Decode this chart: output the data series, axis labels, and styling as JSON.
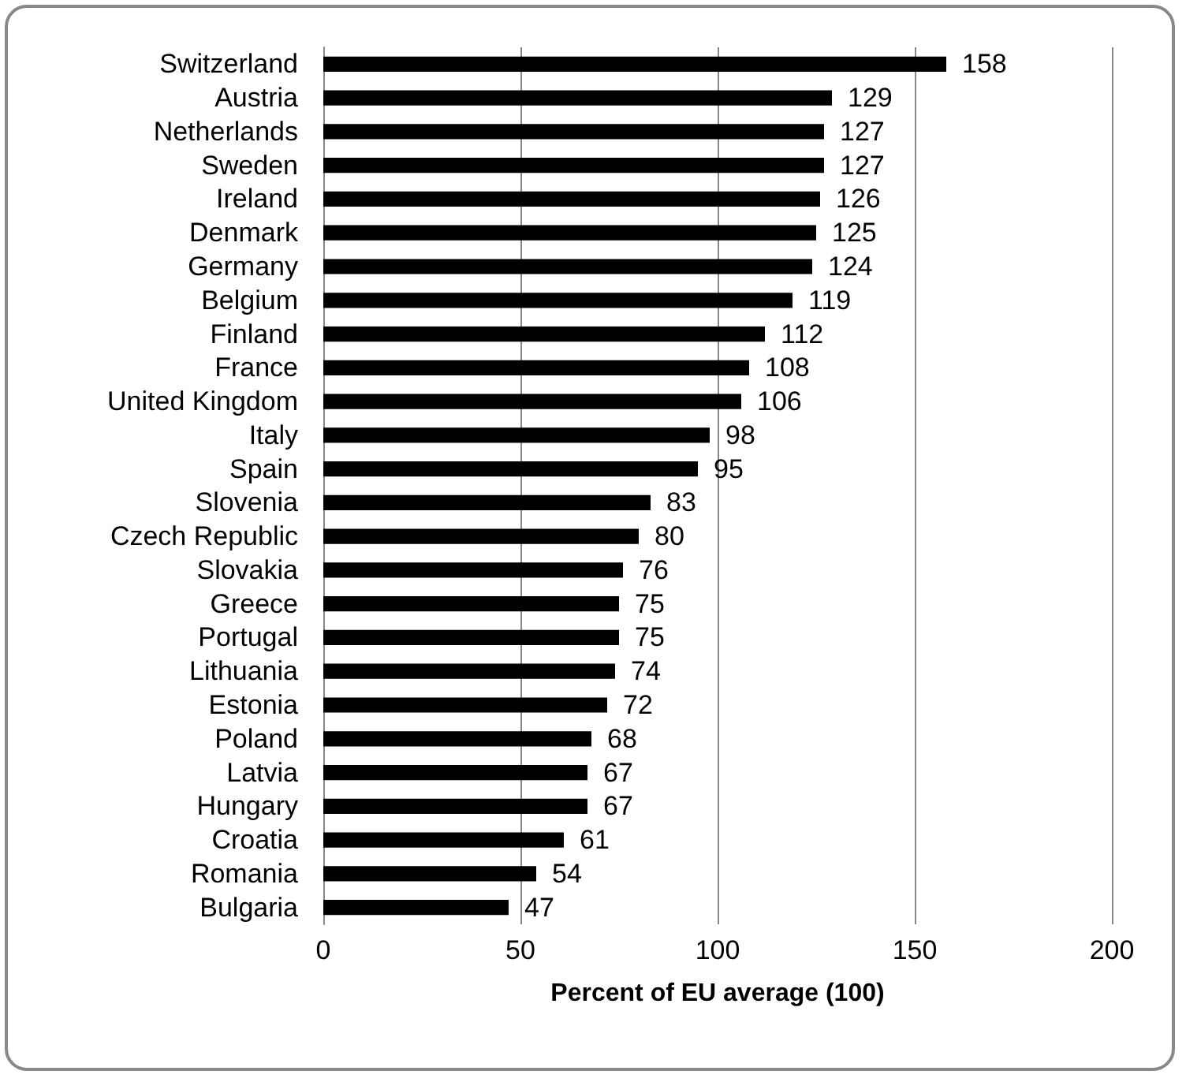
{
  "chart_data": {
    "type": "bar",
    "orientation": "horizontal",
    "xlabel": "Percent of EU average (100)",
    "categories": [
      "Switzerland",
      "Austria",
      "Netherlands",
      "Sweden",
      "Ireland",
      "Denmark",
      "Germany",
      "Belgium",
      "Finland",
      "France",
      "United Kingdom",
      "Italy",
      "Spain",
      "Slovenia",
      "Czech Republic",
      "Slovakia",
      "Greece",
      "Portugal",
      "Lithuania",
      "Estonia",
      "Poland",
      "Latvia",
      "Hungary",
      "Croatia",
      "Romania",
      "Bulgaria"
    ],
    "values": [
      158,
      129,
      127,
      127,
      126,
      125,
      124,
      119,
      112,
      108,
      106,
      98,
      95,
      83,
      80,
      76,
      75,
      75,
      74,
      72,
      68,
      67,
      67,
      61,
      54,
      47
    ],
    "color": "#000000",
    "xlim": [
      0,
      200
    ],
    "xticks": [
      0,
      50,
      100,
      150,
      200
    ],
    "grid": "x",
    "data_labels": true
  }
}
